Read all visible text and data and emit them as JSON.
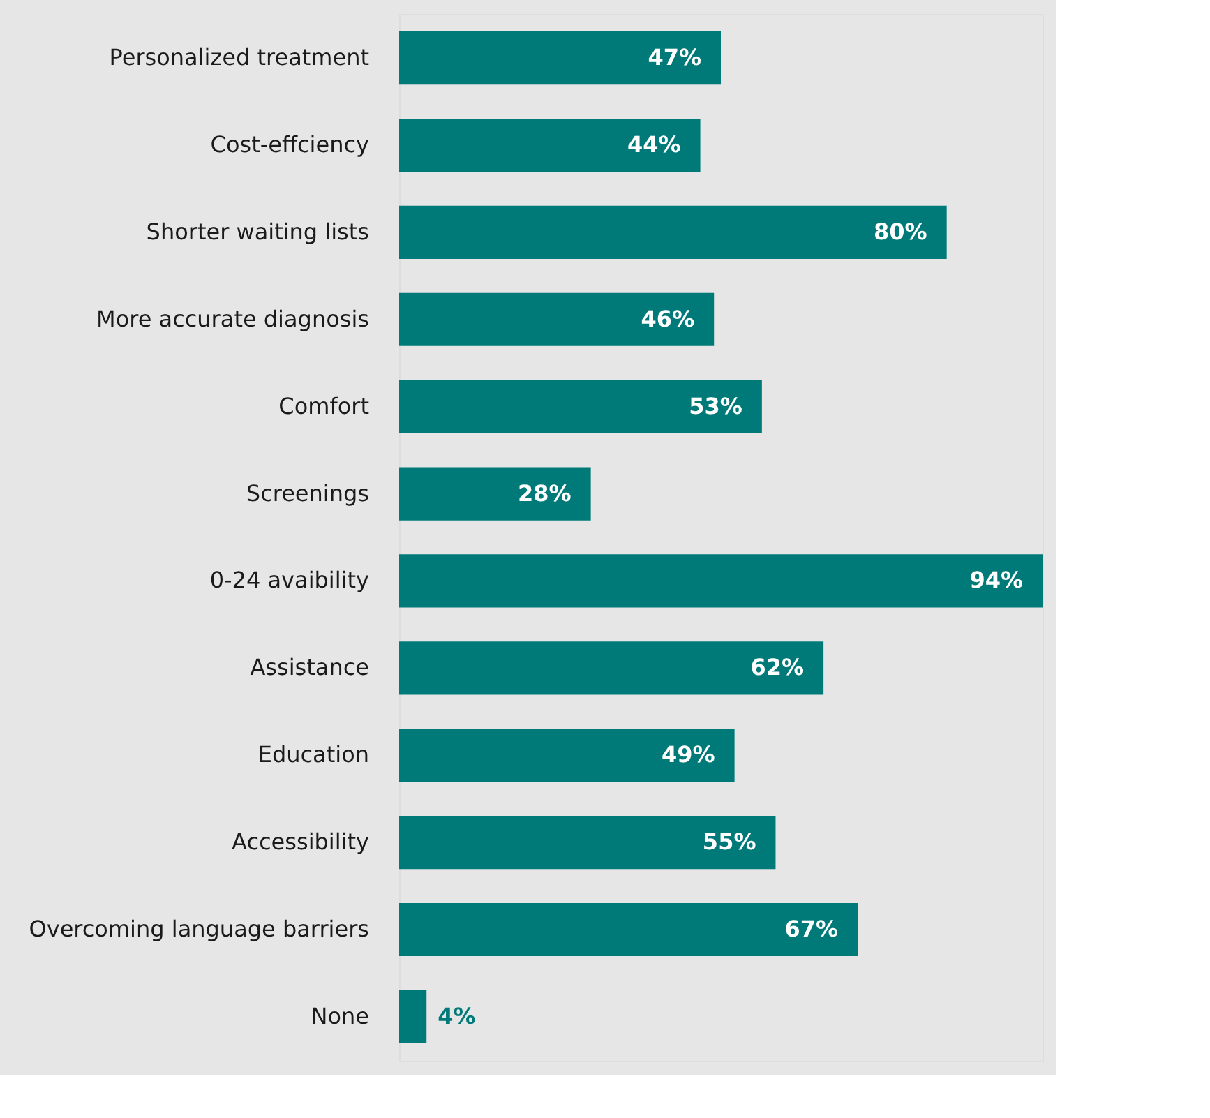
{
  "chart_data": {
    "type": "bar",
    "orientation": "horizontal",
    "categories": [
      "Personalized treatment",
      "Cost-effciency",
      "Shorter waiting lists",
      "More accurate diagnosis",
      "Comfort",
      "Screenings",
      "0-24 avaibility",
      "Assistance",
      "Education",
      "Accessibility",
      "Overcoming language barriers",
      "None"
    ],
    "values": [
      47,
      44,
      80,
      46,
      53,
      28,
      94,
      62,
      49,
      55,
      67,
      4
    ],
    "value_labels": [
      "47%",
      "44%",
      "80%",
      "46%",
      "53%",
      "28%",
      "94%",
      "62%",
      "49%",
      "55%",
      "67%",
      "4%"
    ],
    "color": "#007a78",
    "tick_labels": "y"
  }
}
